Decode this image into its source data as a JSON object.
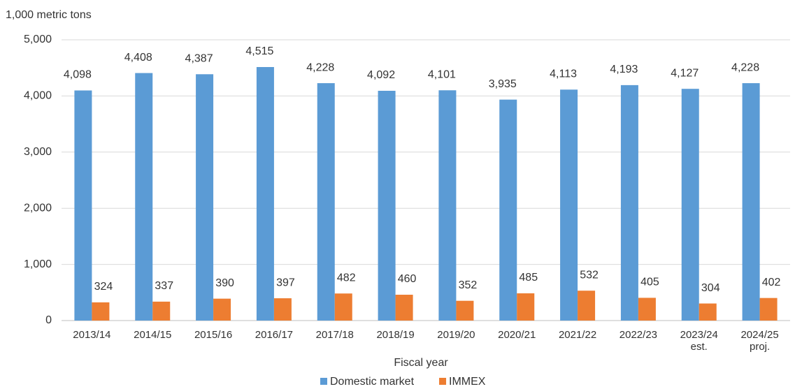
{
  "chart_data": {
    "type": "bar",
    "y_label": "1,000 metric tons",
    "x_label": "Fiscal year",
    "categories": [
      "2013/14",
      "2014/15",
      "2015/16",
      "2016/17",
      "2017/18",
      "2018/19",
      "2019/20",
      "2020/21",
      "2021/22",
      "2022/23",
      "2023/24 est.",
      "2024/25 proj."
    ],
    "series": [
      {
        "name": "Domestic market",
        "color": "#5b9bd5",
        "values": [
          4098,
          4408,
          4387,
          4515,
          4228,
          4092,
          4101,
          3935,
          4113,
          4193,
          4127,
          4228
        ],
        "value_labels": [
          "4,098",
          "4,408",
          "4,387",
          "4,515",
          "4,228",
          "4,092",
          "4,101",
          "3,935",
          "4,113",
          "4,193",
          "4,127",
          "4,228"
        ]
      },
      {
        "name": "IMMEX",
        "color": "#ed7d31",
        "values": [
          324,
          337,
          390,
          397,
          482,
          460,
          352,
          485,
          532,
          405,
          304,
          402
        ]
      }
    ],
    "ylim": [
      0,
      5000
    ],
    "yticks": [
      0,
      {
        "value": 1000,
        "label": "1,000"
      },
      {
        "value": 2000,
        "label": "2,000"
      },
      {
        "value": 3000,
        "label": "3,000"
      },
      {
        "value": 4000,
        "label": "4,000"
      },
      {
        "value": 5000,
        "label": "5,000"
      }
    ],
    "grid": true,
    "legend": "bottom"
  }
}
